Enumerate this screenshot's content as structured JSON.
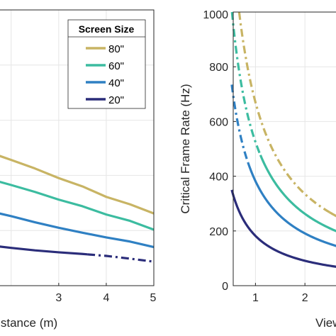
{
  "chart_data": [
    {
      "type": "line",
      "xlabel": "Distance (m)",
      "ylabel": "",
      "xlim": [
        1.75,
        5
      ],
      "ylim": [
        0,
        1000
      ],
      "xticks": [
        3,
        4,
        5
      ],
      "xtick_labels": [
        "3",
        "4",
        "5"
      ],
      "grid": true,
      "legend_title": "Screen Size",
      "legend_position": "top-right",
      "series": [
        {
          "name": "80\"",
          "color": "#c8b464",
          "points": [
            [
              1.75,
              471
            ],
            [
              2,
              456
            ],
            [
              2.5,
              425
            ],
            [
              3,
              390
            ],
            [
              3.5,
              360
            ],
            [
              4,
              322
            ],
            [
              4.5,
              295
            ],
            [
              5,
              262
            ]
          ],
          "dashed_from": null
        },
        {
          "name": "60\"",
          "color": "#3cbca0",
          "points": [
            [
              1.75,
              377
            ],
            [
              2,
              365
            ],
            [
              2.5,
              340
            ],
            [
              3,
              312
            ],
            [
              3.5,
              288
            ],
            [
              4,
              258
            ],
            [
              4.5,
              235
            ],
            [
              5,
              203
            ]
          ],
          "dashed_from": null
        },
        {
          "name": "40\"",
          "color": "#2f80c3",
          "points": [
            [
              1.75,
              262
            ],
            [
              2,
              252
            ],
            [
              2.5,
              230
            ],
            [
              3,
              210
            ],
            [
              3.5,
              192
            ],
            [
              4,
              175
            ],
            [
              4.5,
              160
            ],
            [
              5,
              140
            ]
          ],
          "dashed_from": null
        },
        {
          "name": "20\"",
          "color": "#2b2d7a",
          "points": [
            [
              1.75,
              142
            ],
            [
              2,
              137
            ],
            [
              2.5,
              128
            ],
            [
              3,
              121
            ],
            [
              3.5,
              115
            ],
            [
              4,
              108
            ],
            [
              4.5,
              98
            ],
            [
              5,
              87
            ]
          ],
          "dashed_from": 3.6
        }
      ]
    },
    {
      "type": "line",
      "xlabel": "Viewing",
      "ylabel": "Critical Frame Rate (Hz)",
      "xlim": [
        0.55,
        2.7
      ],
      "ylim": [
        0,
        1000
      ],
      "yticks": [
        0,
        200,
        400,
        600,
        800,
        1000
      ],
      "ytick_labels": [
        "0",
        "200",
        "400",
        "600",
        "800",
        "1000"
      ],
      "xticks": [
        1,
        2
      ],
      "xtick_labels": [
        "1",
        "2"
      ],
      "grid": true,
      "series": [
        {
          "name": "80\"",
          "color": "#c8b464",
          "k": 670,
          "x_start": 0.67,
          "dash_until": 2.5
        },
        {
          "name": "60\"",
          "color": "#3cbca0",
          "k": 525,
          "x_start": 0.52,
          "dash_until": 1.1
        },
        {
          "name": "40\"",
          "color": "#2f80c3",
          "k": 382,
          "x_start": 0.52,
          "dash_until": 0.85
        },
        {
          "name": "20\"",
          "color": "#2b2d7a",
          "k": 182,
          "x_start": 0.52,
          "dash_until": null
        }
      ]
    }
  ]
}
